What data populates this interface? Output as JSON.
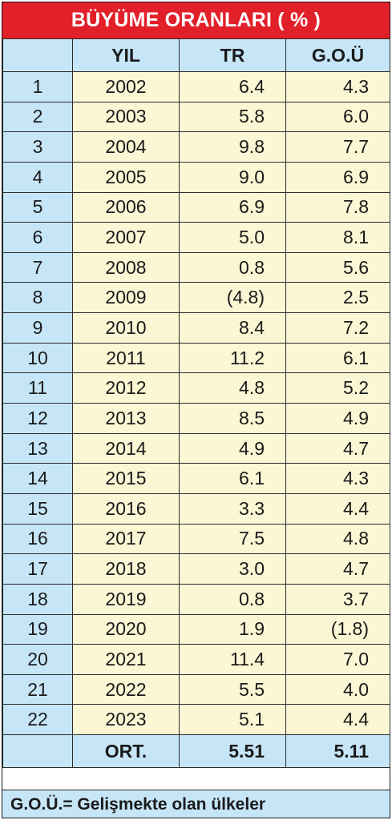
{
  "title": "BÜYÜME ORANLARI ( % )",
  "columns": {
    "index": "",
    "year": "YIL",
    "tr": "TR",
    "gou": "G.O.Ü"
  },
  "rows": [
    {
      "no": "1",
      "year": "2002",
      "tr": "6.4",
      "gou": "4.3"
    },
    {
      "no": "2",
      "year": "2003",
      "tr": "5.8",
      "gou": "6.0"
    },
    {
      "no": "3",
      "year": "2004",
      "tr": "9.8",
      "gou": "7.7"
    },
    {
      "no": "4",
      "year": "2005",
      "tr": "9.0",
      "gou": "6.9"
    },
    {
      "no": "5",
      "year": "2006",
      "tr": "6.9",
      "gou": "7.8"
    },
    {
      "no": "6",
      "year": "2007",
      "tr": "5.0",
      "gou": "8.1"
    },
    {
      "no": "7",
      "year": "2008",
      "tr": "0.8",
      "gou": "5.6"
    },
    {
      "no": "8",
      "year": "2009",
      "tr": "(4.8)",
      "gou": "2.5"
    },
    {
      "no": "9",
      "year": "2010",
      "tr": "8.4",
      "gou": "7.2"
    },
    {
      "no": "10",
      "year": "2011",
      "tr": "11.2",
      "gou": "6.1"
    },
    {
      "no": "11",
      "year": "2012",
      "tr": "4.8",
      "gou": "5.2"
    },
    {
      "no": "12",
      "year": "2013",
      "tr": "8.5",
      "gou": "4.9"
    },
    {
      "no": "13",
      "year": "2014",
      "tr": "4.9",
      "gou": "4.7"
    },
    {
      "no": "14",
      "year": "2015",
      "tr": "6.1",
      "gou": "4.3"
    },
    {
      "no": "15",
      "year": "2016",
      "tr": "3.3",
      "gou": "4.4"
    },
    {
      "no": "16",
      "year": "2017",
      "tr": "7.5",
      "gou": "4.8"
    },
    {
      "no": "17",
      "year": "2018",
      "tr": "3.0",
      "gou": "4.7"
    },
    {
      "no": "18",
      "year": "2019",
      "tr": "0.8",
      "gou": "3.7"
    },
    {
      "no": "19",
      "year": "2020",
      "tr": "1.9",
      "gou": "(1.8)"
    },
    {
      "no": "20",
      "year": "2021",
      "tr": "11.4",
      "gou": "7.0"
    },
    {
      "no": "21",
      "year": "2022",
      "tr": "5.5",
      "gou": "4.0"
    },
    {
      "no": "22",
      "year": "2023",
      "tr": "5.1",
      "gou": "4.4"
    }
  ],
  "average": {
    "label": "ORT.",
    "tr": "5.51",
    "gou": "5.11"
  },
  "footnote": "G.O.Ü.= Gelişmekte olan ülkeler",
  "colors": {
    "title_bg": "#e2202a",
    "header_bg": "#c6e6f8",
    "cell_bg": "#fbf6d4",
    "corner_bg": "#f6c5ba"
  }
}
